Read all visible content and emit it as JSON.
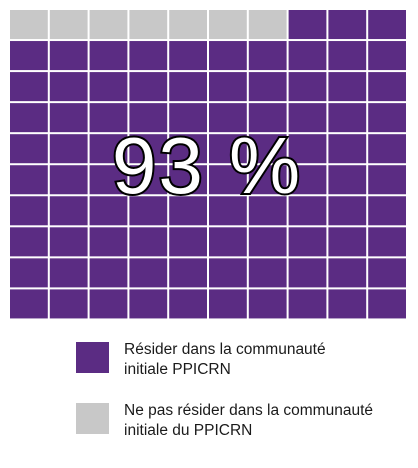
{
  "chart_data": {
    "type": "waffle",
    "grid": {
      "rows": 10,
      "columns": 10
    },
    "center_label": "93 %",
    "series": [
      {
        "name_lines": [
          "Résider dans la communauté",
          "initiale PPICRN"
        ],
        "value": 93,
        "color": "#5b2c83"
      },
      {
        "name_lines": [
          "Ne pas résider dans la communauté",
          "initiale du PPICRN"
        ],
        "value": 7,
        "color": "#c8c8c8"
      }
    ]
  }
}
